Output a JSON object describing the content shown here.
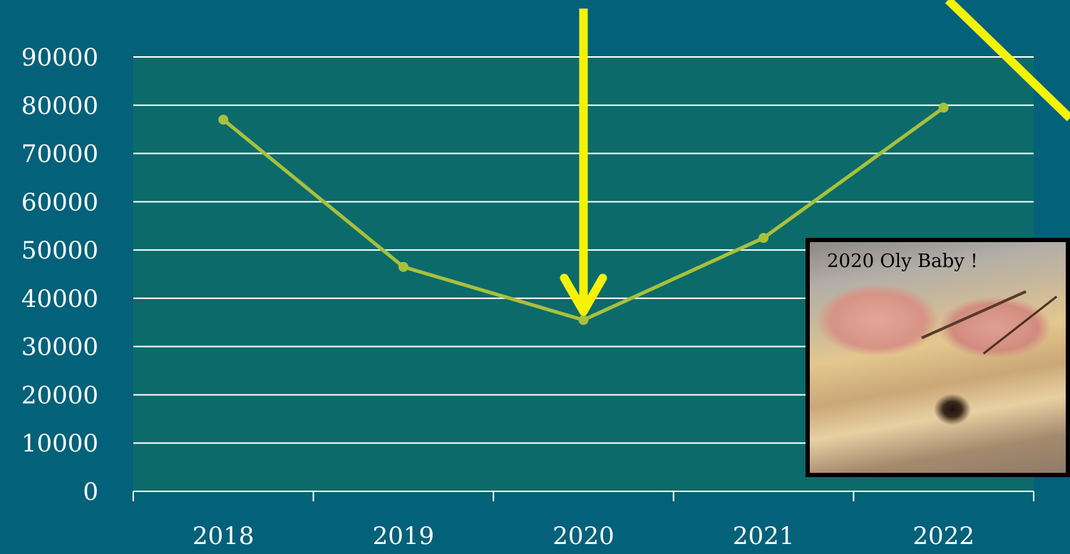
{
  "chart_data": {
    "type": "line",
    "categories": [
      "2018",
      "2019",
      "2020",
      "2021",
      "2022"
    ],
    "series": [
      {
        "values": [
          77000,
          46500,
          35500,
          52500,
          79500
        ]
      }
    ],
    "yticks": [
      "0",
      "10000",
      "20000",
      "30000",
      "40000",
      "50000",
      "60000",
      "70000",
      "80000",
      "90000"
    ],
    "ylim": [
      0,
      90000
    ],
    "grid": true,
    "title": "",
    "xlabel": "",
    "ylabel": ""
  },
  "annotation": {
    "highlight": "2020"
  },
  "photo": {
    "caption": "2020 Oly Baby !"
  },
  "colors": {
    "background": "#04617a",
    "plot_area": "#0c6a6a",
    "grid": "#ffffff",
    "line": "#a7c13c",
    "arrow": "#f5f20a",
    "text": "#ffffff"
  }
}
